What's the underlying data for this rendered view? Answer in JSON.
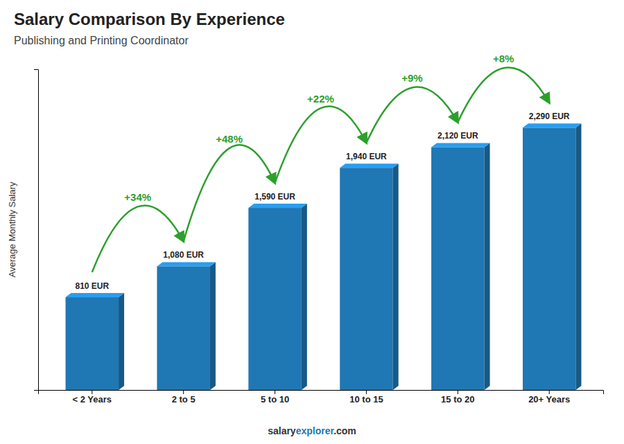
{
  "chart_data": {
    "type": "bar",
    "title": "Salary Comparison By Experience",
    "subtitle": "Publishing and Printing Coordinator",
    "categories": [
      "< 2 Years",
      "2 to 5",
      "5 to 10",
      "10 to 15",
      "15 to 20",
      "20+ Years"
    ],
    "values": [
      810,
      1080,
      1590,
      1940,
      2120,
      2290
    ],
    "value_labels": [
      "810 EUR",
      "1,080 EUR",
      "1,590 EUR",
      "1,940 EUR",
      "2,120 EUR",
      "2,290 EUR"
    ],
    "data_labels": true,
    "annotations": [
      "+34%",
      "+48%",
      "+22%",
      "+9%",
      "+8%"
    ],
    "ylabel": "Average Monthly Salary",
    "footer": [
      "salary",
      "explorer",
      ".com"
    ],
    "ylim": [
      0,
      2800
    ],
    "yticks": [],
    "tick_labels": "x",
    "grid": false
  }
}
